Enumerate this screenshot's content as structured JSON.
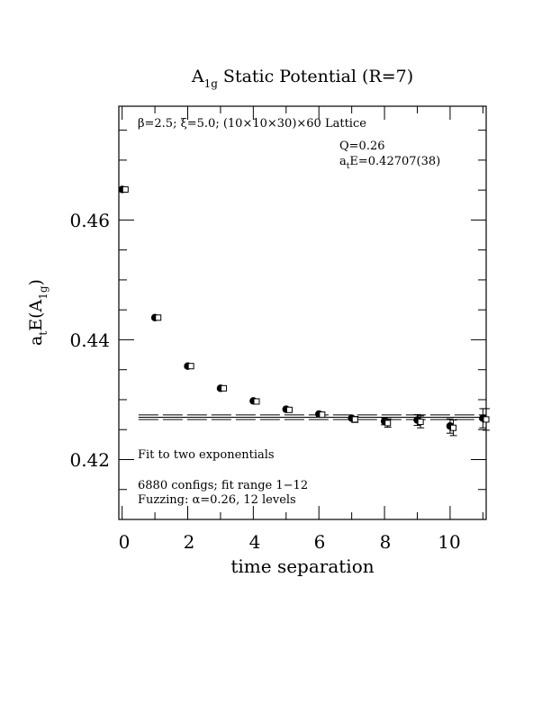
{
  "chart_data": {
    "type": "scatter",
    "title": "A",
    "title_sub": "1g",
    "title_rest": " Static Potential (R=7)",
    "xlabel": "time separation",
    "ylabel_main": "a",
    "ylabel_sub_t": "t",
    "ylabel_mid": "E(A",
    "ylabel_sub_1g": "1g",
    "ylabel_end": ")",
    "xlim": [
      -0.1,
      11.1
    ],
    "ylim": [
      0.41,
      0.479
    ],
    "x_ticks": [
      0,
      2,
      4,
      6,
      8,
      10
    ],
    "x_tick_labels": [
      "0",
      "2",
      "4",
      "6",
      "8",
      "10"
    ],
    "y_ticks": [
      0.42,
      0.44,
      0.46
    ],
    "y_tick_labels": [
      "0.42",
      "0.44",
      "0.46"
    ],
    "annotations": {
      "lattice": "β=2.5; ξ=5.0; (10×10×30)×60 Lattice",
      "q": "Q=0.26",
      "ate_pre": "a",
      "ate_sub": "t",
      "ate_post": "E=0.42707(38)",
      "fit": "Fit to two exponentials",
      "configs": "6880 configs; fit range 1−12",
      "fuzzing": "Fuzzing: α=0.26, 12 levels"
    },
    "series": [
      {
        "marker": "filled-circle",
        "x": [
          0,
          1,
          2,
          3,
          4,
          5,
          6,
          7,
          8,
          9,
          10,
          11
        ],
        "y": [
          0.4651,
          0.4437,
          0.4356,
          0.4319,
          0.4298,
          0.4284,
          0.4276,
          0.4269,
          0.4264,
          0.4266,
          0.4256,
          0.4269
        ],
        "err": [
          0.0002,
          0.0002,
          0.0002,
          0.0002,
          0.0003,
          0.0003,
          0.0003,
          0.0004,
          0.0006,
          0.0009,
          0.0012,
          0.0016
        ]
      },
      {
        "marker": "open-square",
        "x": [
          0.1,
          1.1,
          2.1,
          3.1,
          4.1,
          5.1,
          6.1,
          7.1,
          8.1,
          9.1,
          10.1,
          11.1
        ],
        "y": [
          0.4651,
          0.4437,
          0.4356,
          0.4319,
          0.4297,
          0.4283,
          0.4275,
          0.4267,
          0.4261,
          0.4263,
          0.4253,
          0.4267
        ],
        "err": [
          0.0002,
          0.0002,
          0.0002,
          0.0002,
          0.0003,
          0.0003,
          0.0003,
          0.0005,
          0.0007,
          0.001,
          0.0013,
          0.0018
        ]
      }
    ],
    "fit": {
      "x_range": [
        0.5,
        11.1
      ],
      "center": 0.42707,
      "band": 0.00038
    }
  }
}
